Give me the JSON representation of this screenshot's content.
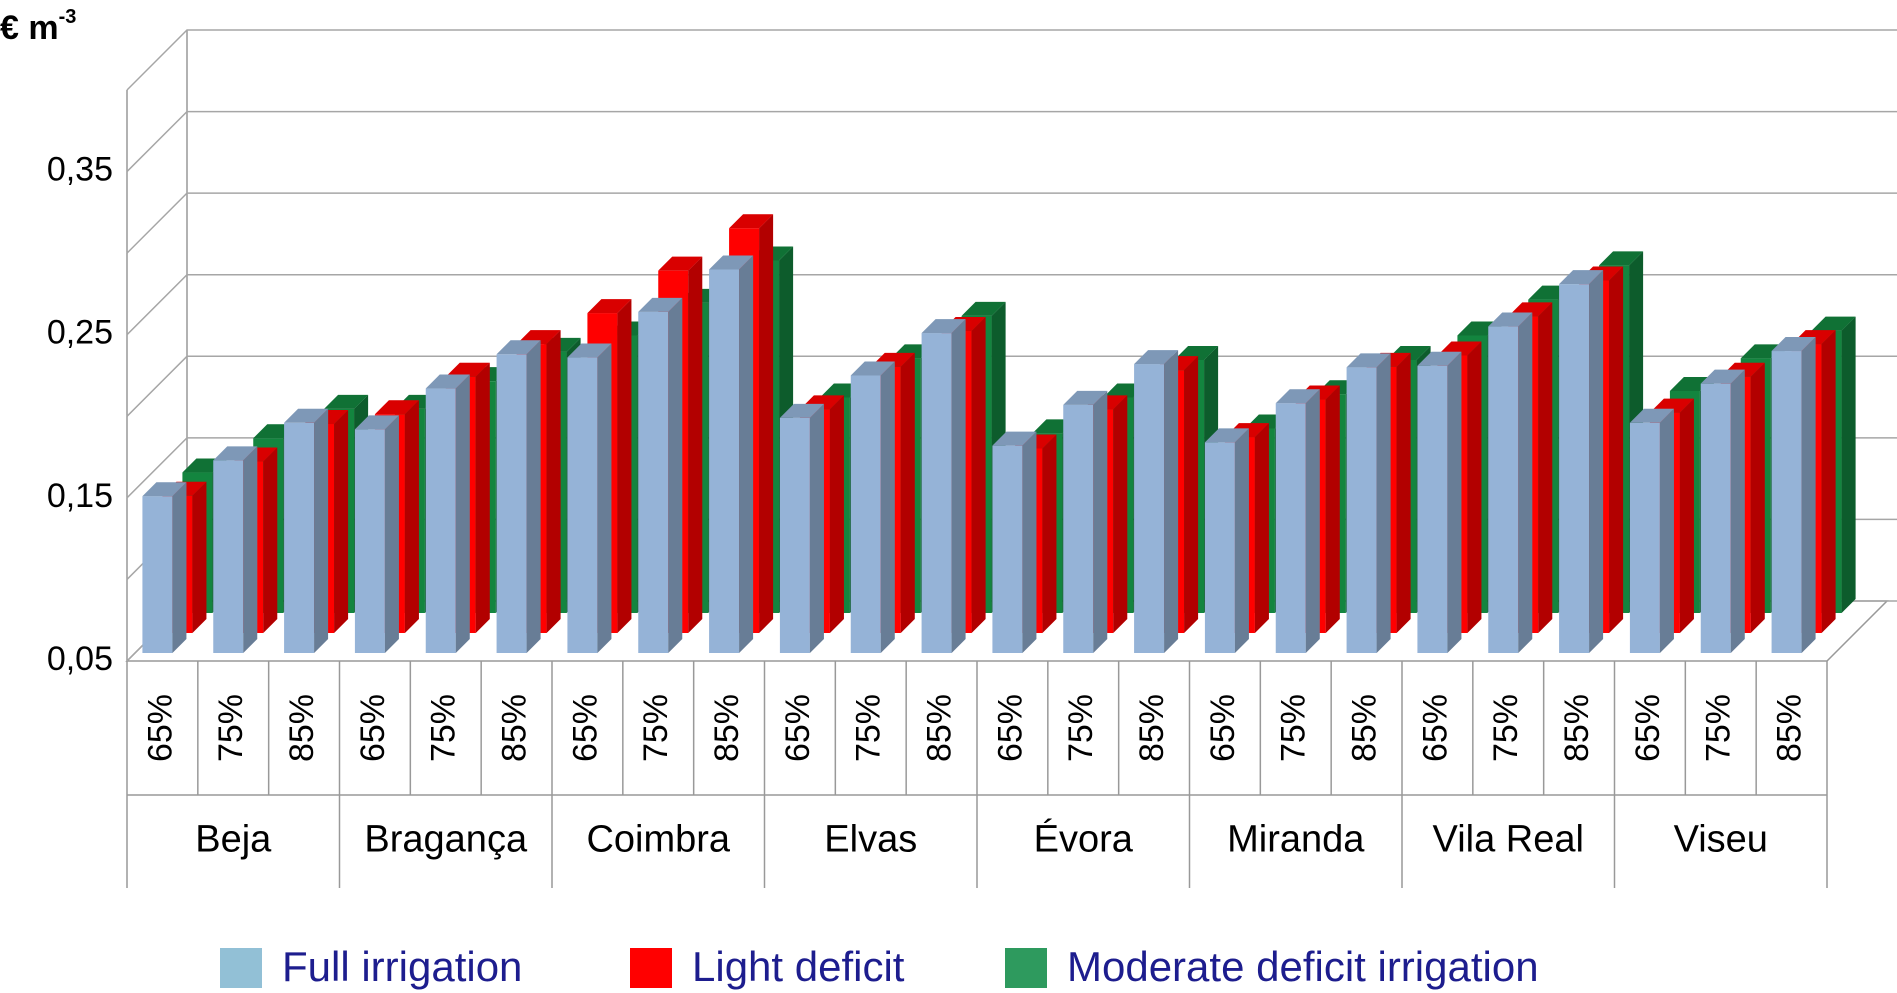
{
  "chart_data": {
    "type": "bar3d",
    "y_label": {
      "base": "€ m",
      "superscript": "-3"
    },
    "categories": [
      "65%",
      "75%",
      "85%",
      "65%",
      "75%",
      "85%",
      "65%",
      "75%",
      "85%",
      "65%",
      "75%",
      "85%",
      "65%",
      "75%",
      "85%",
      "65%",
      "75%",
      "85%",
      "65%",
      "75%",
      "85%",
      "65%",
      "75%",
      "85%"
    ],
    "groups": [
      "Beja",
      "Bragança",
      "Coimbra",
      "Elvas",
      "Évora",
      "Miranda",
      "Vila Real",
      "Viseu"
    ],
    "series": [
      {
        "name": "Full irrigation",
        "color": "#95b3d7",
        "legend_color": "#92c0d6",
        "values": [
          0.151,
          0.173,
          0.196,
          0.192,
          0.217,
          0.238,
          0.236,
          0.264,
          0.29,
          0.199,
          0.225,
          0.251,
          0.182,
          0.207,
          0.232,
          0.184,
          0.208,
          0.23,
          0.231,
          0.255,
          0.281,
          0.196,
          0.22,
          0.24
        ]
      },
      {
        "name": "Light deficit",
        "color": "#ff0000",
        "legend_color": "#ff0000",
        "values": [
          0.139,
          0.16,
          0.183,
          0.189,
          0.212,
          0.232,
          0.251,
          0.277,
          0.303,
          0.192,
          0.218,
          0.24,
          0.168,
          0.192,
          0.216,
          0.175,
          0.198,
          0.218,
          0.225,
          0.249,
          0.271,
          0.19,
          0.212,
          0.232
        ]
      },
      {
        "name": "Moderate deficit irrigation",
        "color": "#13853f",
        "legend_color": "#2e9a5e",
        "values": [
          0.141,
          0.162,
          0.18,
          0.18,
          0.197,
          0.215,
          0.225,
          0.245,
          0.271,
          0.187,
          0.211,
          0.237,
          0.165,
          0.187,
          0.21,
          0.168,
          0.189,
          0.21,
          0.225,
          0.247,
          0.268,
          0.191,
          0.211,
          0.228
        ]
      }
    ],
    "ylim": [
      0.05,
      0.4
    ],
    "yticks": [
      {
        "value": 0.05,
        "label": "0,05"
      },
      {
        "value": 0.15,
        "label": "0,15"
      },
      {
        "value": 0.25,
        "label": "0,25"
      },
      {
        "value": 0.35,
        "label": "0,35"
      }
    ],
    "minor_grid": [
      0.1,
      0.2,
      0.3,
      0.4
    ],
    "grid": true
  }
}
